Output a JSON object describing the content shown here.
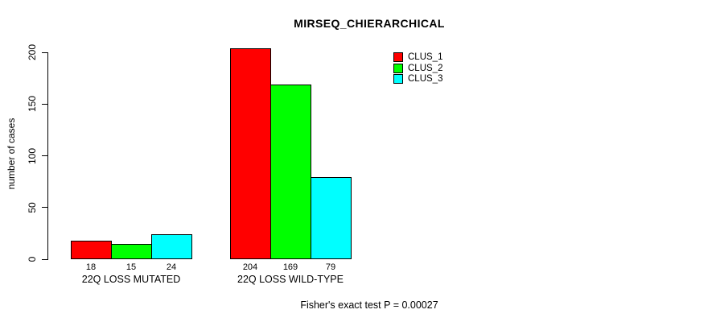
{
  "chart_data": {
    "type": "bar",
    "title": "MIRSEQ_CHIERARCHICAL",
    "ylabel": "number of cases",
    "xlabel": "",
    "footer": "Fisher's exact test P = 0.00027",
    "categories": [
      "22Q LOSS MUTATED",
      "22Q LOSS WILD-TYPE"
    ],
    "series": [
      {
        "name": "CLUS_1",
        "color": "#ff0000",
        "values": [
          18,
          204
        ]
      },
      {
        "name": "CLUS_2",
        "color": "#00ff00",
        "values": [
          15,
          169
        ]
      },
      {
        "name": "CLUS_3",
        "color": "#00ffff",
        "values": [
          24,
          79
        ]
      }
    ],
    "value_labels": [
      [
        "18",
        "15",
        "24"
      ],
      [
        "204",
        "169",
        "79"
      ]
    ],
    "yticks": [
      0,
      50,
      100,
      150,
      200
    ],
    "ylim": [
      0,
      200
    ],
    "grid": false,
    "legend_position": "top-right",
    "bar_border_color": "#000000",
    "background_color": "#ffffff"
  }
}
